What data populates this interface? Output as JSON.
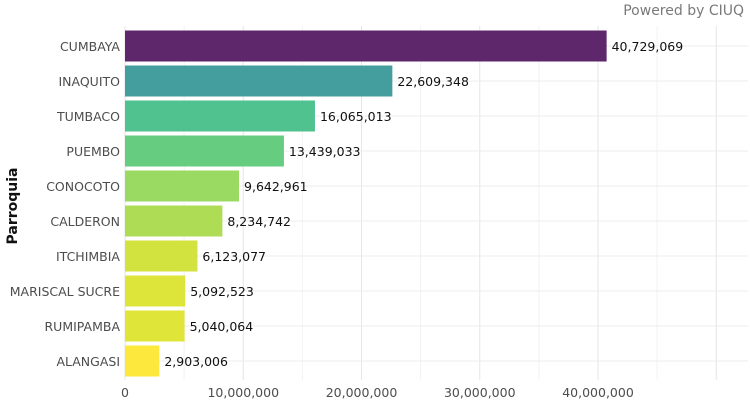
{
  "powered_by": "Powered by CIUQ",
  "chart_data": {
    "type": "bar",
    "orientation": "horizontal",
    "title": "",
    "xlabel": "",
    "ylabel": "Parroquia",
    "categories": [
      "CUMBAYA",
      "INAQUITO",
      "TUMBACO",
      "PUEMBO",
      "CONOCOTO",
      "CALDERON",
      "ITCHIMBIA",
      "MARISCAL SUCRE",
      "RUMIPAMBA",
      "ALANGASI"
    ],
    "values": [
      40729069,
      22609348,
      16065013,
      13439033,
      9642961,
      8234742,
      6123077,
      5092523,
      5040064,
      2903006
    ],
    "value_labels": [
      "40,729,069",
      "22,609,348",
      "16,065,013",
      "13,439,033",
      "9,642,961",
      "8,234,742",
      "6,123,077",
      "5,092,523",
      "5,040,064",
      "2,903,006"
    ],
    "colors": [
      "#5e266b",
      "#459e9e",
      "#50c28f",
      "#66cc80",
      "#9ada63",
      "#aedd55",
      "#d2e23e",
      "#dee53a",
      "#e0e639",
      "#fde83d"
    ],
    "xlim": [
      0,
      48000000
    ],
    "xticks": [
      0,
      10000000,
      20000000,
      30000000,
      40000000
    ],
    "xtick_labels": [
      "0",
      "10,000,000",
      "20,000,000",
      "30,000,000",
      "40,000,000"
    ],
    "grid": true,
    "legend": "none"
  }
}
